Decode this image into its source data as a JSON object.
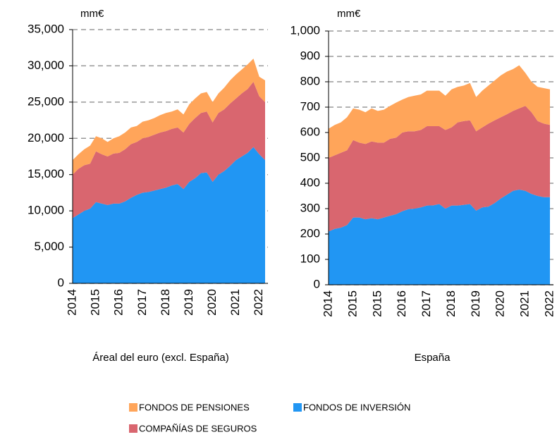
{
  "chart_data": [
    {
      "type": "area",
      "ylabel": "mm€",
      "xlabel": "Áreal del euro (excl. España)",
      "categories": [
        "2014",
        null,
        null,
        null,
        "2015",
        null,
        null,
        null,
        "2016",
        null,
        null,
        null,
        "2017",
        null,
        null,
        null,
        "2018",
        null,
        null,
        null,
        "2019",
        null,
        null,
        null,
        "2020",
        null,
        null,
        null,
        "2021",
        null,
        null,
        null,
        "2022",
        null
      ],
      "series": [
        {
          "name": "FONDOS DE INVERSIÓN",
          "color": "#2196f3",
          "values": [
            9000,
            9500,
            10000,
            10300,
            11200,
            11000,
            10800,
            11000,
            11000,
            11300,
            11800,
            12200,
            12500,
            12600,
            12800,
            13000,
            13200,
            13500,
            13700,
            13000,
            14000,
            14500,
            15200,
            15300,
            14000,
            15000,
            15500,
            16200,
            17000,
            17500,
            18000,
            18800,
            17800,
            17000
          ]
        },
        {
          "name": "COMPAÑÍAS DE SEGUROS",
          "color": "#d9666f",
          "values": [
            6000,
            6300,
            6300,
            6200,
            7000,
            6800,
            6700,
            6900,
            7000,
            7200,
            7400,
            7300,
            7500,
            7600,
            7700,
            7800,
            7800,
            7800,
            7800,
            7800,
            8000,
            8300,
            8300,
            8400,
            8200,
            8500,
            8500,
            8600,
            8500,
            8700,
            8800,
            9000,
            8000,
            8000
          ]
        },
        {
          "name": "FONDOS DE PENSIONES",
          "color": "#ffa55a",
          "values": [
            2000,
            2000,
            2200,
            2500,
            2100,
            2200,
            2000,
            2100,
            2300,
            2300,
            2300,
            2200,
            2300,
            2300,
            2300,
            2400,
            2500,
            2400,
            2500,
            2500,
            2700,
            2700,
            2700,
            2700,
            2800,
            2700,
            3000,
            3200,
            3300,
            3300,
            3400,
            3200,
            2700,
            3000
          ]
        }
      ],
      "ylim": [
        0,
        35000
      ],
      "yticks": [
        0,
        {
          "value": 5000,
          "label": "5,000"
        },
        {
          "value": 10000,
          "label": "10,000"
        },
        {
          "value": 15000,
          "label": "15,000"
        },
        {
          "value": 20000,
          "label": "20,000"
        },
        {
          "value": 25000,
          "label": "25,000"
        },
        {
          "value": 30000,
          "label": "30,000"
        },
        {
          "value": 35000,
          "label": "35,000"
        }
      ],
      "grid": true
    },
    {
      "type": "area",
      "ylabel": "mm€",
      "xlabel": "España",
      "categories": [
        "2014",
        null,
        null,
        null,
        "2015",
        null,
        null,
        null,
        "2015",
        null,
        null,
        null,
        "2016",
        null,
        null,
        null,
        "2017",
        null,
        null,
        null,
        "2018",
        null,
        null,
        null,
        "2019",
        null,
        null,
        null,
        "2020",
        null,
        null,
        null,
        "2021",
        null,
        null,
        null,
        "2022"
      ],
      "series": [
        {
          "name": "FONDOS DE INVERSIÓN",
          "color": "#2196f3",
          "values": [
            210,
            220,
            225,
            235,
            265,
            265,
            258,
            262,
            258,
            265,
            272,
            278,
            290,
            298,
            300,
            305,
            312,
            313,
            318,
            300,
            312,
            312,
            315,
            318,
            292,
            305,
            308,
            322,
            340,
            355,
            370,
            375,
            370,
            358,
            350,
            345,
            345
          ]
        },
        {
          "name": "COMPAÑÍAS DE SEGUROS",
          "color": "#d9666f",
          "values": [
            290,
            290,
            295,
            295,
            305,
            295,
            297,
            303,
            302,
            295,
            303,
            302,
            310,
            307,
            305,
            305,
            313,
            312,
            307,
            310,
            308,
            328,
            330,
            330,
            313,
            315,
            327,
            326,
            320,
            317,
            315,
            320,
            335,
            322,
            295,
            290,
            285
          ]
        },
        {
          "name": "FONDOS DE PENSIONES",
          "color": "#ffa55a",
          "values": [
            115,
            120,
            120,
            130,
            125,
            130,
            125,
            130,
            125,
            130,
            130,
            138,
            130,
            135,
            140,
            140,
            140,
            140,
            140,
            135,
            150,
            140,
            140,
            147,
            135,
            145,
            150,
            157,
            165,
            168,
            165,
            170,
            130,
            120,
            135,
            140,
            140
          ]
        }
      ],
      "ylim": [
        0,
        1000
      ],
      "yticks": [
        0,
        100,
        200,
        300,
        400,
        500,
        600,
        700,
        800,
        900,
        {
          "value": 1000,
          "label": "1,000"
        }
      ],
      "grid": true
    }
  ]
}
